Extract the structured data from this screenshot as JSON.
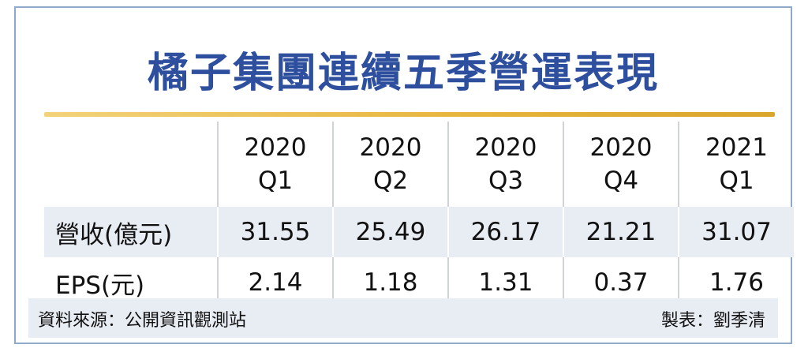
{
  "title": "橘子集團連續五季營運表現",
  "table": {
    "periods": [
      {
        "year": "2020",
        "quarter": "Q1"
      },
      {
        "year": "2020",
        "quarter": "Q2"
      },
      {
        "year": "2020",
        "quarter": "Q3"
      },
      {
        "year": "2020",
        "quarter": "Q4"
      },
      {
        "year": "2021",
        "quarter": "Q1"
      }
    ],
    "rows": [
      {
        "label": "營收(億元)",
        "values": [
          "31.55",
          "25.49",
          "26.17",
          "21.21",
          "31.07"
        ]
      },
      {
        "label": "EPS(元)",
        "values": [
          "2.14",
          "1.18",
          "1.31",
          "0.37",
          "1.76"
        ]
      }
    ]
  },
  "footer": {
    "source": "資料來源：公開資訊觀測站",
    "maker": "製表：劉季清"
  },
  "colors": {
    "title": "#2d4f9e",
    "frame_border": "#8fa9c9",
    "accent_bar": "#e6b43a",
    "shaded_row": "#e8ecf3"
  }
}
